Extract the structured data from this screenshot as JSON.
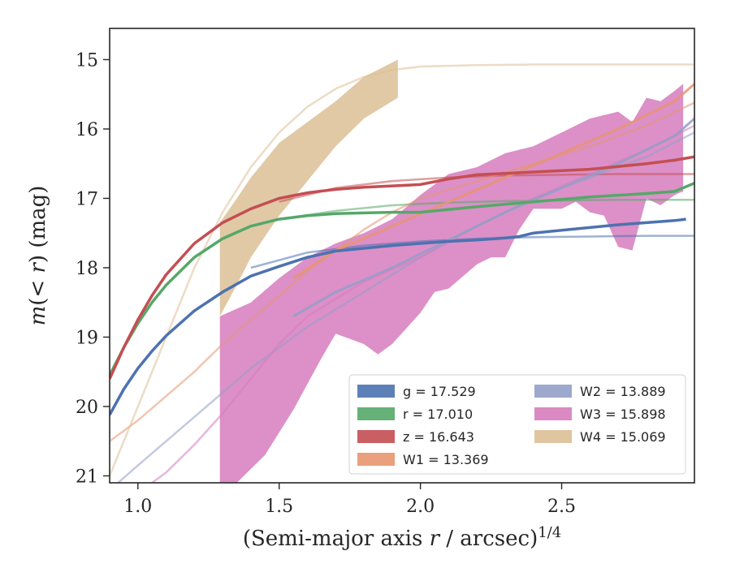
{
  "chart_data": {
    "type": "line",
    "xlabel": "(Semi-major axis r / arcsec)^{1/4}",
    "ylabel": "m(<r) (mag)",
    "xlim": [
      0.9,
      2.97
    ],
    "ylim": [
      21.1,
      14.55
    ],
    "y_inverted": true,
    "xticks": [
      "1.0",
      "1.5",
      "2.0",
      "2.5"
    ],
    "yticks": [
      "15",
      "16",
      "17",
      "18",
      "19",
      "20",
      "21"
    ],
    "grid": false,
    "legend_position": "lower-right",
    "legend": [
      {
        "band": "g",
        "label": "g = 17.529",
        "color": "#4c72b0"
      },
      {
        "band": "r",
        "label": "r = 17.010",
        "color": "#55a868"
      },
      {
        "band": "z",
        "label": "z = 16.643",
        "color": "#c44e52"
      },
      {
        "band": "W1",
        "label": "W1 = 13.369",
        "color": "#e8956f"
      },
      {
        "band": "W2",
        "label": "W2 = 13.889",
        "color": "#929fc8"
      },
      {
        "band": "W3",
        "label": "W3 = 15.898",
        "color": "#d67cbd"
      },
      {
        "band": "W4",
        "label": "W4 = 15.069",
        "color": "#dcbf96"
      }
    ],
    "observed": [
      {
        "band": "g",
        "color": "#4c72b0",
        "x": [
          0.9,
          0.95,
          1.0,
          1.05,
          1.1,
          1.2,
          1.3,
          1.4,
          1.5,
          1.6,
          1.7,
          1.8,
          1.9,
          2.0,
          2.1,
          2.2,
          2.3,
          2.35,
          2.4,
          2.5,
          2.6,
          2.7,
          2.8,
          2.9,
          2.94
        ],
        "y": [
          20.12,
          19.75,
          19.45,
          19.2,
          18.98,
          18.62,
          18.35,
          18.12,
          17.98,
          17.85,
          17.76,
          17.72,
          17.68,
          17.65,
          17.62,
          17.6,
          17.57,
          17.55,
          17.5,
          17.46,
          17.42,
          17.38,
          17.35,
          17.32,
          17.3
        ]
      },
      {
        "band": "r",
        "color": "#55a868",
        "x": [
          0.9,
          0.95,
          1.0,
          1.05,
          1.1,
          1.2,
          1.3,
          1.4,
          1.5,
          1.6,
          1.7,
          1.8,
          1.9,
          2.0,
          2.2,
          2.4,
          2.6,
          2.8,
          2.9,
          2.97
        ],
        "y": [
          19.55,
          19.15,
          18.8,
          18.5,
          18.25,
          17.85,
          17.58,
          17.4,
          17.3,
          17.25,
          17.22,
          17.21,
          17.2,
          17.2,
          17.12,
          17.05,
          16.98,
          16.93,
          16.9,
          16.78
        ]
      },
      {
        "band": "z",
        "color": "#c44e52",
        "x": [
          0.9,
          0.95,
          1.0,
          1.05,
          1.1,
          1.2,
          1.3,
          1.4,
          1.5,
          1.6,
          1.7,
          1.8,
          1.9,
          2.0,
          2.1,
          2.2,
          2.4,
          2.6,
          2.8,
          2.9,
          2.97
        ],
        "y": [
          19.6,
          19.15,
          18.75,
          18.4,
          18.1,
          17.65,
          17.35,
          17.15,
          17.0,
          16.92,
          16.87,
          16.84,
          16.82,
          16.8,
          16.72,
          16.66,
          16.62,
          16.58,
          16.5,
          16.45,
          16.4
        ]
      }
    ],
    "model_curves": [
      {
        "band": "g",
        "color": "#4c72b0",
        "x": [
          1.4,
          1.6,
          1.8,
          2.0,
          2.2,
          2.4,
          2.6,
          2.8,
          2.97
        ],
        "y": [
          18.0,
          17.78,
          17.68,
          17.62,
          17.58,
          17.56,
          17.55,
          17.54,
          17.54
        ]
      },
      {
        "band": "r",
        "color": "#55a868",
        "x": [
          1.5,
          1.7,
          1.9,
          2.1,
          2.3,
          2.5,
          2.7,
          2.97
        ],
        "y": [
          17.3,
          17.18,
          17.1,
          17.06,
          17.04,
          17.03,
          17.02,
          17.02
        ]
      },
      {
        "band": "z",
        "color": "#c44e52",
        "x": [
          1.5,
          1.7,
          1.9,
          2.1,
          2.3,
          2.5,
          2.7,
          2.97
        ],
        "y": [
          17.05,
          16.85,
          16.75,
          16.7,
          16.67,
          16.66,
          16.65,
          16.65
        ]
      },
      {
        "band": "W1",
        "color": "#e8956f",
        "x": [
          0.9,
          1.0,
          1.1,
          1.2,
          1.3,
          1.4,
          1.5,
          1.6,
          1.7,
          1.8,
          1.9,
          2.0,
          2.2,
          2.4,
          2.6,
          2.8,
          2.97
        ],
        "y": [
          20.5,
          20.2,
          19.85,
          19.5,
          19.1,
          18.75,
          18.4,
          18.05,
          17.75,
          17.45,
          17.2,
          17.0,
          16.75,
          16.5,
          16.25,
          15.95,
          15.62
        ]
      },
      {
        "band": "W2",
        "color": "#929fc8",
        "x": [
          0.93,
          1.0,
          1.1,
          1.2,
          1.3,
          1.4,
          1.5,
          1.6,
          1.7,
          1.8,
          1.9,
          2.0,
          2.2,
          2.4,
          2.6,
          2.8,
          2.97
        ],
        "y": [
          21.1,
          20.85,
          20.5,
          20.15,
          19.8,
          19.45,
          19.15,
          18.85,
          18.6,
          18.35,
          18.1,
          17.85,
          17.4,
          17.0,
          16.7,
          16.4,
          16.05
        ]
      },
      {
        "band": "W3",
        "color": "#d67cbd",
        "x": [
          1.05,
          1.1,
          1.2,
          1.3,
          1.4,
          1.5,
          1.6,
          1.8,
          2.0,
          2.2,
          2.4,
          2.6,
          2.8,
          2.97
        ],
        "y": [
          21.1,
          20.95,
          20.55,
          20.1,
          19.6,
          19.1,
          18.7,
          18.2,
          17.85,
          17.4,
          17.0,
          16.65,
          16.3,
          15.95
        ]
      },
      {
        "band": "W4",
        "color": "#dcbf96",
        "x": [
          0.9,
          1.0,
          1.1,
          1.2,
          1.3,
          1.4,
          1.5,
          1.6,
          1.7,
          1.8,
          1.9,
          2.0,
          2.2,
          2.4,
          2.6,
          2.8,
          2.97
        ],
        "y": [
          21.0,
          20.0,
          19.0,
          18.0,
          17.2,
          16.55,
          16.05,
          15.68,
          15.42,
          15.25,
          15.15,
          15.1,
          15.08,
          15.07,
          15.07,
          15.07,
          15.07
        ]
      }
    ],
    "wise_observed": [
      {
        "band": "W1",
        "color": "#e8956f",
        "x": [
          1.55,
          1.7,
          1.9,
          2.1,
          2.3,
          2.5,
          2.7,
          2.9,
          2.97
        ],
        "y": [
          18.15,
          17.75,
          17.4,
          17.05,
          16.7,
          16.35,
          16.0,
          15.6,
          15.35
        ]
      },
      {
        "band": "W2",
        "color": "#929fc8",
        "x": [
          1.55,
          1.7,
          1.9,
          2.1,
          2.3,
          2.5,
          2.7,
          2.9,
          2.97
        ],
        "y": [
          18.7,
          18.35,
          18.0,
          17.6,
          17.2,
          16.85,
          16.5,
          16.1,
          15.85
        ]
      }
    ],
    "bands": [
      {
        "band": "W3",
        "color": "#d67cbd",
        "upper_x": [
          1.29,
          1.4,
          1.5,
          1.6,
          1.7,
          1.8,
          1.9,
          2.0,
          2.1,
          2.2,
          2.3,
          2.4,
          2.5,
          2.55,
          2.6,
          2.65,
          2.7,
          2.75,
          2.8,
          2.85,
          2.9,
          2.93
        ],
        "upper_y": [
          18.7,
          18.5,
          18.15,
          17.85,
          17.65,
          17.5,
          17.3,
          16.95,
          16.65,
          16.55,
          16.35,
          16.25,
          16.05,
          15.95,
          15.85,
          15.8,
          15.75,
          15.9,
          15.55,
          15.6,
          15.45,
          15.35
        ],
        "lower_x": [
          1.29,
          1.35,
          1.45,
          1.55,
          1.65,
          1.7,
          1.8,
          1.85,
          1.9,
          2.0,
          2.05,
          2.1,
          2.2,
          2.25,
          2.3,
          2.35,
          2.4,
          2.45,
          2.5,
          2.55,
          2.6,
          2.65,
          2.7,
          2.75,
          2.8,
          2.85,
          2.9,
          2.93
        ],
        "lower_y": [
          21.1,
          21.1,
          20.7,
          20.05,
          19.3,
          18.95,
          19.1,
          19.25,
          19.1,
          18.65,
          18.35,
          18.3,
          17.95,
          17.85,
          17.85,
          17.45,
          17.15,
          17.15,
          17.15,
          17.05,
          17.2,
          17.25,
          17.7,
          17.75,
          17.0,
          17.1,
          16.95,
          16.9
        ]
      },
      {
        "band": "W4",
        "color": "#dcbf96",
        "upper_x": [
          1.29,
          1.35,
          1.4,
          1.5,
          1.6,
          1.7,
          1.8,
          1.92
        ],
        "upper_y": [
          17.35,
          17.0,
          16.7,
          16.2,
          15.9,
          15.6,
          15.25,
          15.0
        ],
        "lower_x": [
          1.29,
          1.35,
          1.4,
          1.5,
          1.6,
          1.7,
          1.8,
          1.92
        ],
        "lower_y": [
          18.7,
          18.25,
          17.85,
          17.25,
          16.75,
          16.25,
          15.85,
          15.55
        ]
      }
    ]
  }
}
